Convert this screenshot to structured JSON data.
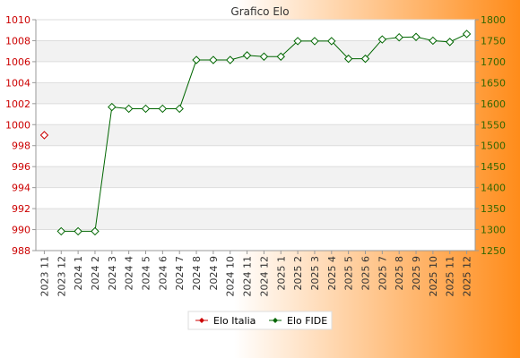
{
  "chart_data": {
    "type": "line",
    "title": "Grafico Elo",
    "categories": [
      "2023 11",
      "2023 12",
      "2024 1",
      "2024 2",
      "2024 3",
      "2024 4",
      "2024 5",
      "2024 6",
      "2024 7",
      "2024 8",
      "2024 9",
      "2024 10",
      "2024 11",
      "2024 12",
      "2025 1",
      "2025 2",
      "2025 3",
      "2025 4",
      "2025 5",
      "2025 6",
      "2025 7",
      "2025 8",
      "2025 9",
      "2025 10",
      "2025 11",
      "2025 12"
    ],
    "y_left": {
      "min": 988,
      "max": 1010,
      "ticks": [
        988,
        990,
        992,
        994,
        996,
        998,
        1000,
        1002,
        1004,
        1006,
        1008,
        1010
      ],
      "color": "#cc0000"
    },
    "y_right": {
      "min": 1250,
      "max": 1800,
      "ticks": [
        1250,
        1300,
        1350,
        1400,
        1450,
        1500,
        1550,
        1600,
        1650,
        1700,
        1750,
        1800
      ],
      "color": "#336600"
    },
    "series": [
      {
        "name": "Elo Italia",
        "axis": "left",
        "color": "#cc0000",
        "values": [
          999,
          null,
          null,
          null,
          null,
          null,
          null,
          null,
          null,
          null,
          null,
          null,
          null,
          null,
          null,
          null,
          null,
          null,
          null,
          null,
          null,
          null,
          null,
          null,
          null,
          null
        ]
      },
      {
        "name": "Elo FIDE",
        "axis": "right",
        "color": "#006600",
        "values": [
          null,
          1296,
          1296,
          1296,
          1592,
          1588,
          1588,
          1588,
          1588,
          1704,
          1704,
          1704,
          1715,
          1712,
          1712,
          1749,
          1749,
          1749,
          1707,
          1707,
          1753,
          1758,
          1759,
          1750,
          1747,
          1766
        ]
      }
    ],
    "grid": true,
    "legend_position": "bottom-center",
    "background": {
      "from": "#ffffff",
      "to": "#ff8c1a"
    }
  }
}
